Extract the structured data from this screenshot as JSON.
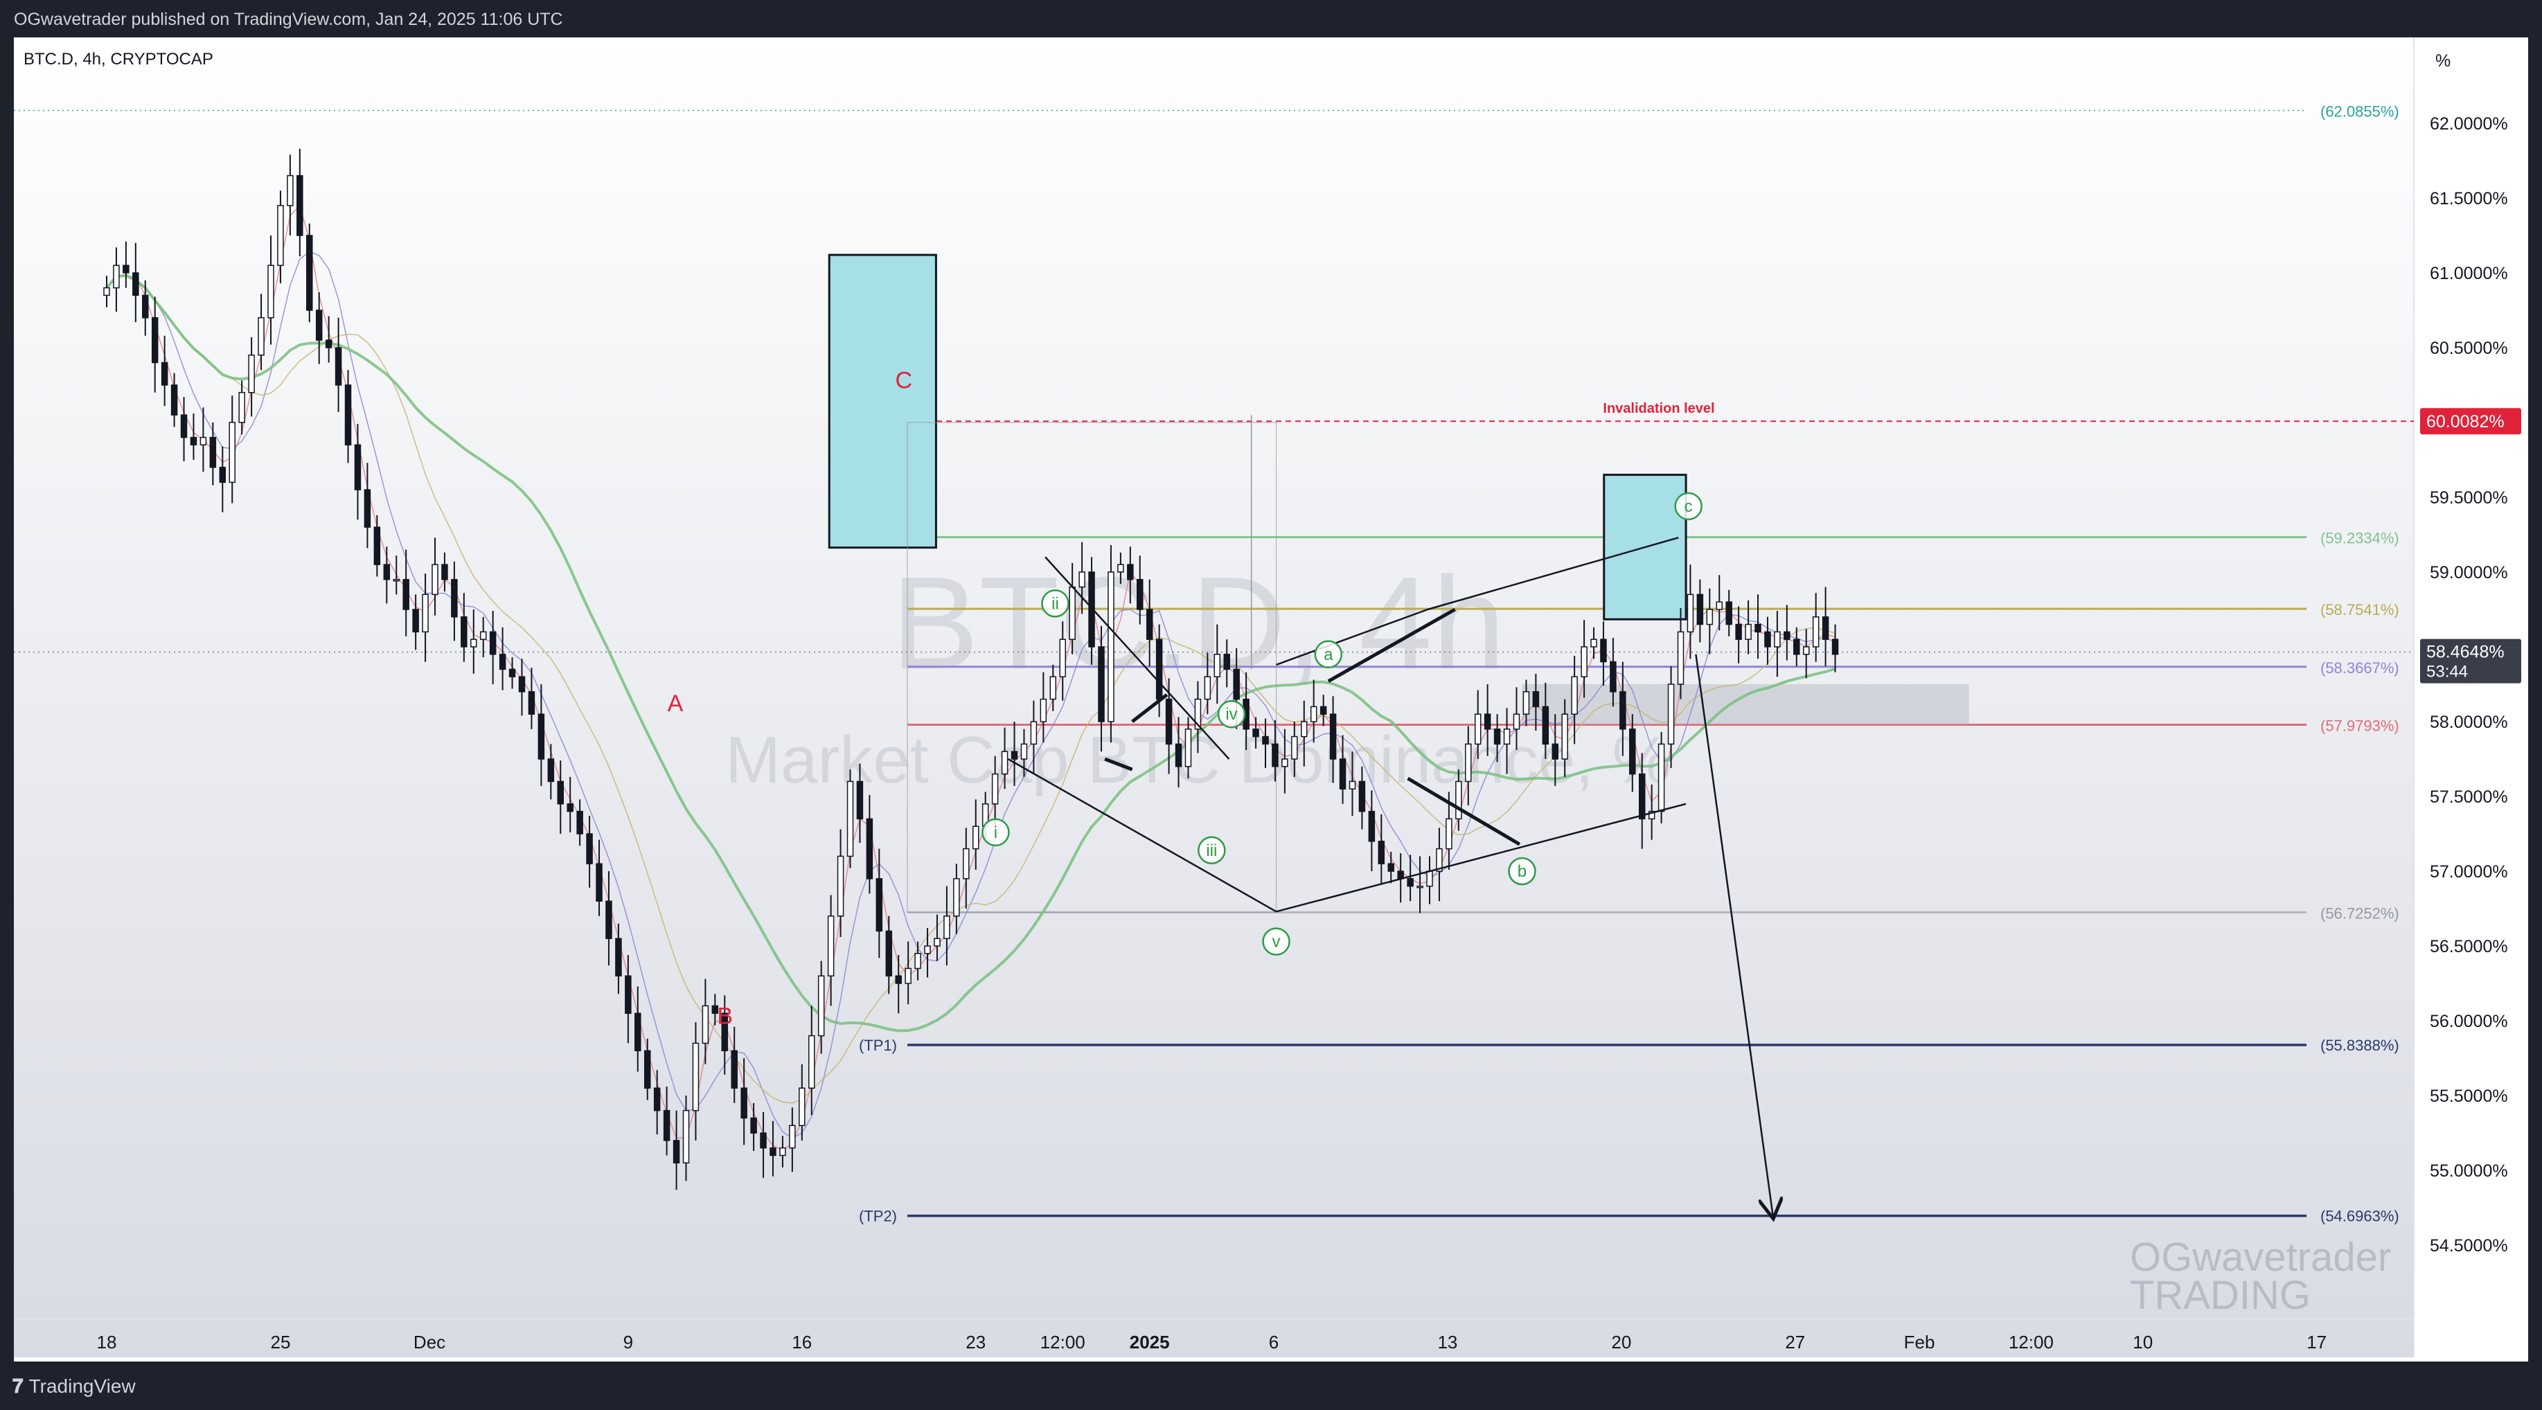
{
  "publisher_line": "OGwavetrader published on TradingView.com, Jan 24, 2025 11:06 UTC",
  "footer": {
    "brand": "TradingView",
    "brand_icon": "tradingview-logo-icon"
  },
  "chart_header": "BTC.D, 4h, CRYPTOCAP",
  "axis_unit": "%",
  "watermark": {
    "symbol": "BTC.D, 4h",
    "description": "Market Cap BTC Dominance, %"
  },
  "author_watermark": [
    "OGwavetrader",
    "TRADING"
  ],
  "colors": {
    "up": "#ffffff",
    "down": "#131722",
    "box_fill": "#a7dfe6",
    "invalidation": "#e0233a",
    "target": "#2b3a67",
    "fib_green": "#7fc38f",
    "fib_olive": "#b9ac52",
    "fib_purple": "#8f86d6",
    "fib_red": "#e06c75",
    "wave_green": "#2e9b47",
    "wave_red": "#e0233a",
    "ma200": "#78c07e"
  },
  "chart_data": {
    "type": "candlestick",
    "symbol": "BTC.D",
    "timeframe": "4h",
    "exchange": "CRYPTOCAP",
    "ylim": [
      54.1,
      62.5
    ],
    "y_ticks": [
      "62.0000%",
      "61.5000%",
      "61.0000%",
      "60.5000%",
      "60.0000%",
      "59.5000%",
      "59.0000%",
      "58.5000%",
      "58.0000%",
      "57.5000%",
      "57.0000%",
      "56.5000%",
      "56.0000%",
      "55.5000%",
      "55.0000%",
      "54.5000%"
    ],
    "y_tick_values": [
      62.0,
      61.5,
      61.0,
      60.5,
      60.0,
      59.5,
      59.0,
      58.5,
      58.0,
      57.5,
      57.0,
      56.5,
      56.0,
      55.5,
      55.0,
      54.5
    ],
    "x_ticks": [
      {
        "label": "18",
        "t": 0
      },
      {
        "label": "25",
        "t": 7
      },
      {
        "label": "Dec",
        "t": 13
      },
      {
        "label": "9",
        "t": 21
      },
      {
        "label": "16",
        "t": 28
      },
      {
        "label": "23",
        "t": 35
      },
      {
        "label": "12:00",
        "t": 38.5
      },
      {
        "label": "2025",
        "t": 42,
        "bold": true
      },
      {
        "label": "6",
        "t": 47
      },
      {
        "label": "13",
        "t": 54
      },
      {
        "label": "20",
        "t": 61
      },
      {
        "label": "27",
        "t": 68
      },
      {
        "label": "Feb",
        "t": 73
      },
      {
        "label": "12:00",
        "t": 77.5
      },
      {
        "label": "10",
        "t": 82
      },
      {
        "label": "17",
        "t": 89
      }
    ],
    "last_price": {
      "value": 58.4648,
      "label": "58.4648%",
      "countdown": "53:44"
    },
    "invalidation": {
      "label": "Invalidation level",
      "value": 60.0082,
      "price_label": "60.0082%"
    },
    "fib_levels": [
      {
        "label": "(62.0855%)",
        "value": 62.0855
      },
      {
        "label": "(59.2334%)",
        "value": 59.2334
      },
      {
        "label": "(58.7541%)",
        "value": 58.7541
      },
      {
        "label": "(58.3667%)",
        "value": 58.3667
      },
      {
        "label": "(57.9793%)",
        "value": 57.9793
      },
      {
        "label": "(56.7252%)",
        "value": 56.7252
      }
    ],
    "targets": [
      {
        "name": "(TP1)",
        "label": "(55.8388%)",
        "value": 55.8388
      },
      {
        "name": "(TP2)",
        "label": "(54.6963%)",
        "value": 54.6963
      }
    ],
    "wave_labels": {
      "corrective_red": [
        {
          "text": "A",
          "t": 22.9,
          "y": 58.07
        },
        {
          "text": "B",
          "t": 24.9,
          "y": 55.98
        },
        {
          "text": "C",
          "t": 32.1,
          "y": 60.23
        }
      ],
      "impulse_green": [
        {
          "text": "i",
          "t": 35.8,
          "y": 57.26
        },
        {
          "text": "ii",
          "t": 38.2,
          "y": 58.79
        },
        {
          "text": "iii",
          "t": 44.5,
          "y": 57.14
        },
        {
          "text": "iv",
          "t": 45.3,
          "y": 58.05
        },
        {
          "text": "v",
          "t": 47.1,
          "y": 56.53
        }
      ],
      "abc_green": [
        {
          "text": "a",
          "t": 49.2,
          "y": 58.45
        },
        {
          "text": "b",
          "t": 57.0,
          "y": 57.0
        },
        {
          "text": "c",
          "t": 63.7,
          "y": 59.44
        }
      ]
    },
    "closes": [
      60.9,
      61.05,
      61.0,
      60.85,
      60.7,
      60.4,
      60.25,
      60.05,
      59.9,
      59.85,
      59.9,
      59.7,
      59.6,
      60.0,
      60.2,
      60.45,
      60.7,
      61.05,
      61.45,
      61.65,
      61.25,
      60.75,
      60.55,
      60.5,
      60.25,
      59.85,
      59.55,
      59.3,
      59.05,
      58.95,
      58.95,
      58.75,
      58.6,
      58.85,
      59.05,
      58.95,
      58.7,
      58.5,
      58.55,
      58.6,
      58.45,
      58.35,
      58.3,
      58.2,
      58.05,
      57.75,
      57.6,
      57.45,
      57.4,
      57.25,
      57.05,
      56.8,
      56.55,
      56.3,
      56.05,
      55.8,
      55.55,
      55.4,
      55.2,
      55.05,
      55.4,
      55.85,
      56.1,
      56.05,
      55.8,
      55.55,
      55.35,
      55.25,
      55.15,
      55.1,
      55.15,
      55.3,
      55.55,
      55.9,
      56.3,
      56.7,
      57.1,
      57.6,
      57.35,
      56.95,
      56.6,
      56.3,
      56.25,
      56.35,
      56.45,
      56.5,
      56.55,
      56.7,
      56.95,
      57.15,
      57.3,
      57.45,
      57.65,
      57.8,
      57.75,
      57.85,
      58.0,
      58.15,
      58.3,
      58.55,
      58.9,
      59.0,
      58.5,
      58.0,
      59.0,
      59.05,
      58.95,
      58.75,
      58.55,
      58.15,
      57.85,
      57.7,
      57.95,
      58.15,
      58.3,
      58.45,
      58.35,
      58.15,
      57.95,
      57.9,
      57.85,
      57.7,
      57.75,
      57.9,
      58.0,
      58.1,
      58.05,
      57.75,
      57.55,
      57.6,
      57.4,
      57.2,
      57.05,
      57.0,
      56.95,
      56.9,
      56.9,
      57.0,
      57.15,
      57.35,
      57.6,
      57.85,
      58.05,
      57.95,
      57.85,
      57.95,
      58.05,
      58.2,
      58.1,
      57.85,
      57.75,
      58.05,
      58.3,
      58.5,
      58.55,
      58.4,
      58.2,
      57.95,
      57.65,
      57.35,
      57.4,
      57.85,
      58.25,
      58.6,
      58.85,
      58.65,
      58.75,
      58.8,
      58.65,
      58.55,
      58.65,
      58.6,
      58.5,
      58.6,
      58.55,
      58.45,
      58.5,
      58.7,
      58.55,
      58.45
    ]
  }
}
